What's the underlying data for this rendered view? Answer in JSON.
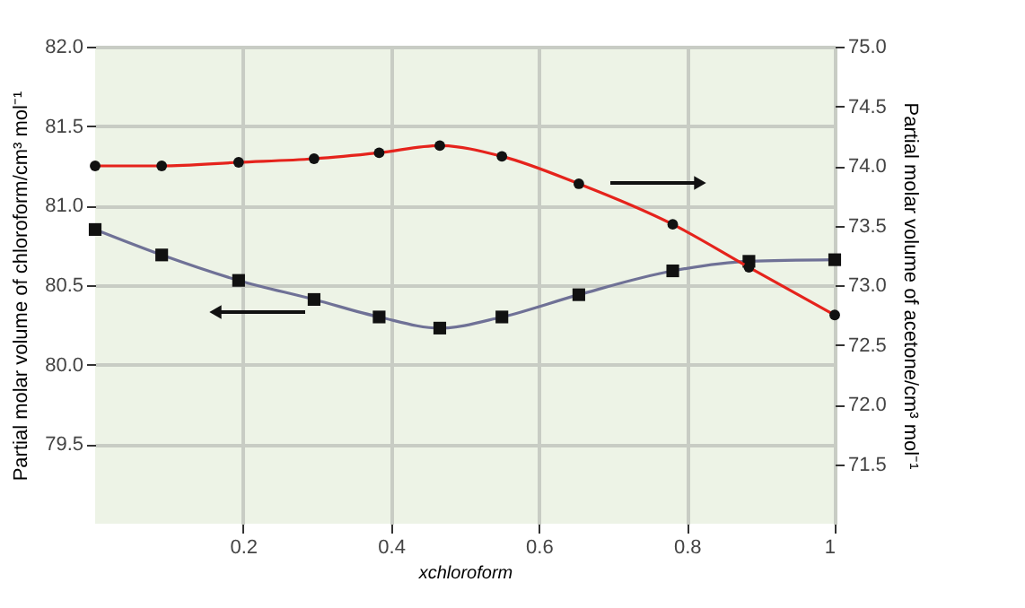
{
  "chart_data": {
    "type": "line",
    "xlabel": "xchloroform",
    "ylabel": "Partial molar volume of chloroform/cm³ mol⁻¹",
    "y2label": "Partial molar volume of acetone/cm³ mol⁻¹",
    "series": [
      {
        "color": "#6f7196",
        "marker": "square",
        "axis": "y",
        "x": [
          0.0,
          0.09,
          0.194,
          0.296,
          0.384,
          0.466,
          0.55,
          0.654,
          0.781,
          0.884,
          1.0
        ],
        "values": [
          80.85,
          80.69,
          80.53,
          80.41,
          80.3,
          80.23,
          80.3,
          80.44,
          80.59,
          80.65,
          80.66
        ]
      },
      {
        "color": "#e5231c",
        "marker": "circle",
        "axis": "y2",
        "x": [
          0.0,
          0.09,
          0.194,
          0.296,
          0.384,
          0.466,
          0.55,
          0.654,
          0.781,
          0.884,
          1.0
        ],
        "values": [
          74.0,
          74.0,
          74.03,
          74.06,
          74.11,
          74.17,
          74.08,
          73.85,
          73.51,
          73.15,
          72.75
        ]
      }
    ],
    "xlim": [
      0,
      1
    ],
    "xticks": [
      0.2,
      0.4,
      0.6,
      0.8,
      {
        "value": 1,
        "label": "1"
      }
    ],
    "ylim": [
      79.0,
      82.0
    ],
    "yticks": [
      {
        "value": 79.5,
        "label": "79.5"
      },
      {
        "value": 80,
        "label": "80.0"
      },
      {
        "value": 80.5,
        "label": "80.5"
      },
      {
        "value": 81,
        "label": "81.0"
      },
      {
        "value": 81.5,
        "label": "81.5"
      },
      {
        "value": 82,
        "label": "82.0"
      }
    ],
    "y2lim": [
      71.0,
      75.0
    ],
    "y2ticks": [
      {
        "value": 71.5,
        "label": "71.5"
      },
      {
        "value": 72,
        "label": "72.0"
      },
      {
        "value": 72.5,
        "label": "72.5"
      },
      {
        "value": 73,
        "label": "73.0"
      },
      {
        "value": 73.5,
        "label": "73.5"
      },
      {
        "value": 74,
        "label": "74.0"
      },
      {
        "value": 74.5,
        "label": "74.5"
      },
      {
        "value": 75,
        "label": "75.0"
      }
    ],
    "grid": true
  }
}
